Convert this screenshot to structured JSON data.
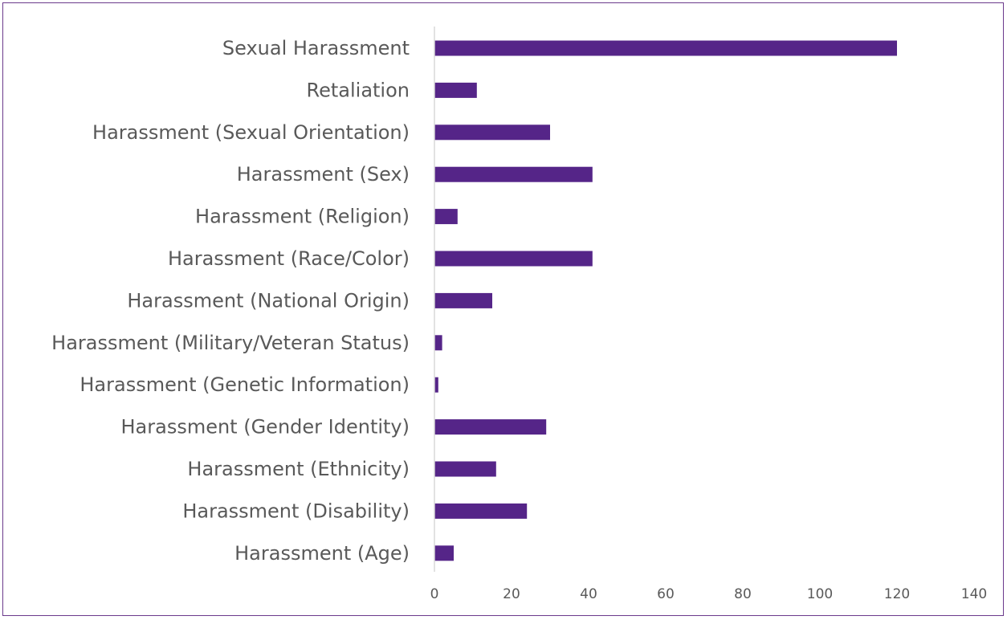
{
  "chart_data": {
    "type": "bar",
    "orientation": "horizontal",
    "categories": [
      "Sexual Harassment",
      "Retaliation",
      "Harassment (Sexual Orientation)",
      "Harassment (Sex)",
      "Harassment (Religion)",
      "Harassment (Race/Color)",
      "Harassment (National Origin)",
      "Harassment (Military/Veteran Status)",
      "Harassment (Genetic Information)",
      "Harassment (Gender Identity)",
      "Harassment (Ethnicity)",
      "Harassment (Disability)",
      "Harassment (Age)"
    ],
    "values": [
      120,
      11,
      30,
      41,
      6,
      41,
      15,
      2,
      1,
      29,
      16,
      24,
      5
    ],
    "xlim": [
      0,
      140
    ],
    "xticks": [
      0,
      20,
      40,
      60,
      80,
      100,
      120,
      140
    ],
    "title": "",
    "xlabel": "",
    "ylabel": "",
    "grid": false,
    "bar_color": "#552588",
    "axis_color": "#d9d9d9",
    "border_color": "#6b3a8c"
  }
}
